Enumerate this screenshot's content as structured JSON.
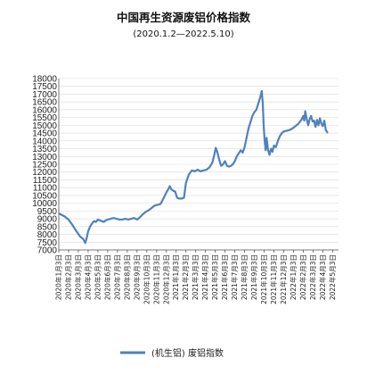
{
  "chart_data": {
    "type": "line",
    "title": "中国再生资源废铝价格指数",
    "subtitle": "(2020.1.2—2022.5.10)",
    "ylim": [
      7000,
      18000
    ],
    "yticks": [
      7000,
      7500,
      8000,
      8500,
      9000,
      9500,
      10000,
      10500,
      11000,
      11500,
      12000,
      12500,
      13000,
      13500,
      14000,
      14500,
      15000,
      15500,
      16000,
      16500,
      17000,
      17500,
      18000
    ],
    "xtick_labels": [
      "2020年1月3日",
      "2020年2月3日",
      "2020年3月3日",
      "2020年4月3日",
      "2020年5月3日",
      "2020年6月3日",
      "2020年7月3日",
      "2020年8月3日",
      "2020年9月3日",
      "2020年10月3日",
      "2020年11月3日",
      "2020年12月3日",
      "2021年1月3日",
      "2021年2月3日",
      "2021年3月3日",
      "2021年4月3日",
      "2021年5月3日",
      "2021年6月3日",
      "2021年7月3日",
      "2021年8月3日",
      "2021年9月3日",
      "2021年10月3日",
      "2021年11月3日",
      "2021年12月3日",
      "2022年1月3日",
      "2022年2月3日",
      "2022年3月3日",
      "2022年4月3日",
      "2022年5月3日"
    ],
    "legend": "top-bottom",
    "series": [
      {
        "name": "(机生铝) 废铝指数",
        "color": "#4f81bd",
        "values": [
          [
            0.0,
            9350
          ],
          [
            0.3,
            9250
          ],
          [
            0.6,
            9150
          ],
          [
            1.0,
            8950
          ],
          [
            1.4,
            8600
          ],
          [
            1.8,
            8200
          ],
          [
            2.2,
            7850
          ],
          [
            2.5,
            7700
          ],
          [
            2.7,
            7450
          ],
          [
            2.85,
            7750
          ],
          [
            3.0,
            8200
          ],
          [
            3.2,
            8500
          ],
          [
            3.4,
            8700
          ],
          [
            3.6,
            8850
          ],
          [
            3.8,
            8800
          ],
          [
            4.0,
            8950
          ],
          [
            4.2,
            8900
          ],
          [
            4.4,
            8850
          ],
          [
            4.6,
            8800
          ],
          [
            4.8,
            8900
          ],
          [
            5.0,
            8950
          ],
          [
            5.3,
            9000
          ],
          [
            5.6,
            9050
          ],
          [
            5.9,
            9000
          ],
          [
            6.2,
            8950
          ],
          [
            6.5,
            8950
          ],
          [
            6.8,
            9000
          ],
          [
            7.1,
            8950
          ],
          [
            7.4,
            9000
          ],
          [
            7.7,
            9050
          ],
          [
            8.0,
            8950
          ],
          [
            8.3,
            9100
          ],
          [
            8.6,
            9300
          ],
          [
            8.9,
            9450
          ],
          [
            9.2,
            9550
          ],
          [
            9.5,
            9700
          ],
          [
            9.8,
            9850
          ],
          [
            10.1,
            9900
          ],
          [
            10.4,
            9950
          ],
          [
            10.7,
            10300
          ],
          [
            11.0,
            10700
          ],
          [
            11.2,
            10900
          ],
          [
            11.35,
            11100
          ],
          [
            11.5,
            10900
          ],
          [
            11.7,
            10800
          ],
          [
            11.9,
            10750
          ],
          [
            12.1,
            10350
          ],
          [
            12.3,
            10300
          ],
          [
            12.6,
            10300
          ],
          [
            12.8,
            10350
          ],
          [
            13.0,
            11300
          ],
          [
            13.3,
            11850
          ],
          [
            13.6,
            12100
          ],
          [
            13.9,
            12050
          ],
          [
            14.2,
            12150
          ],
          [
            14.5,
            12050
          ],
          [
            14.8,
            12100
          ],
          [
            15.1,
            12150
          ],
          [
            15.4,
            12300
          ],
          [
            15.7,
            12600
          ],
          [
            15.9,
            13100
          ],
          [
            16.05,
            13550
          ],
          [
            16.2,
            13300
          ],
          [
            16.4,
            12800
          ],
          [
            16.6,
            12400
          ],
          [
            16.8,
            12500
          ],
          [
            17.0,
            12700
          ],
          [
            17.2,
            12400
          ],
          [
            17.4,
            12350
          ],
          [
            17.6,
            12400
          ],
          [
            17.8,
            12500
          ],
          [
            18.0,
            12700
          ],
          [
            18.2,
            13000
          ],
          [
            18.4,
            13200
          ],
          [
            18.6,
            13400
          ],
          [
            18.8,
            13250
          ],
          [
            19.0,
            13600
          ],
          [
            19.2,
            14200
          ],
          [
            19.4,
            14800
          ],
          [
            19.6,
            15200
          ],
          [
            19.8,
            15600
          ],
          [
            20.0,
            15850
          ],
          [
            20.2,
            16000
          ],
          [
            20.4,
            16400
          ],
          [
            20.6,
            16800
          ],
          [
            20.75,
            17200
          ],
          [
            20.85,
            16500
          ],
          [
            20.95,
            15000
          ],
          [
            21.05,
            14000
          ],
          [
            21.15,
            13400
          ],
          [
            21.25,
            14200
          ],
          [
            21.4,
            13400
          ],
          [
            21.55,
            13100
          ],
          [
            21.7,
            13500
          ],
          [
            21.85,
            13300
          ],
          [
            22.0,
            13700
          ],
          [
            22.2,
            13600
          ],
          [
            22.4,
            14000
          ],
          [
            22.6,
            14300
          ],
          [
            22.8,
            14500
          ],
          [
            23.0,
            14600
          ],
          [
            23.3,
            14650
          ],
          [
            23.6,
            14700
          ],
          [
            23.9,
            14800
          ],
          [
            24.2,
            14950
          ],
          [
            24.5,
            15100
          ],
          [
            24.8,
            15350
          ],
          [
            25.0,
            15600
          ],
          [
            25.1,
            15300
          ],
          [
            25.2,
            15900
          ],
          [
            25.35,
            15400
          ],
          [
            25.5,
            15000
          ],
          [
            25.65,
            15400
          ],
          [
            25.8,
            15600
          ],
          [
            25.95,
            15250
          ],
          [
            26.1,
            15300
          ],
          [
            26.25,
            14900
          ],
          [
            26.4,
            15350
          ],
          [
            26.55,
            15000
          ],
          [
            26.7,
            15450
          ],
          [
            26.85,
            15100
          ],
          [
            27.0,
            14950
          ],
          [
            27.15,
            15300
          ],
          [
            27.3,
            14700
          ],
          [
            27.5,
            14500
          ]
        ]
      }
    ]
  }
}
